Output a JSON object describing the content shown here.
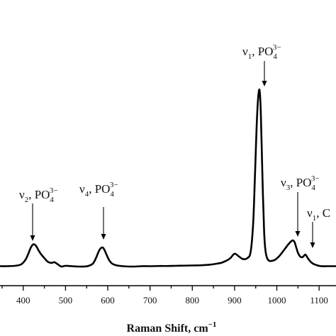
{
  "chart_data": {
    "type": "line",
    "title": "",
    "xlabel": "Raman Shift, cm",
    "xlabel_sup": "−1",
    "ylabel": "",
    "xlim": [
      345,
      1140
    ],
    "ylim": [
      0,
      100
    ],
    "xticks": [
      400,
      500,
      600,
      700,
      800,
      900,
      1000,
      1100
    ],
    "xtick_labels": [
      "400",
      "500",
      "600",
      "700",
      "800",
      "900",
      "1000",
      "1100"
    ],
    "grid": false,
    "legend": "none",
    "series": [
      {
        "color": "#000000",
        "x": [
          345,
          360,
          380,
          395,
          405,
          412,
          418,
          424,
          430,
          436,
          442,
          450,
          458,
          466,
          474,
          482,
          490,
          500,
          515,
          530,
          545,
          555,
          565,
          572,
          578,
          583,
          588,
          592,
          597,
          603,
          610,
          620,
          635,
          650,
          665,
          680,
          700,
          720,
          740,
          760,
          780,
          800,
          820,
          840,
          860,
          870,
          880,
          890,
          900,
          910,
          920,
          930,
          938,
          944,
          948,
          952,
          955,
          958,
          960,
          962,
          964,
          967,
          970,
          973,
          977,
          982,
          988,
          995,
          1003,
          1012,
          1020,
          1028,
          1034,
          1038,
          1042,
          1046,
          1050,
          1055,
          1060,
          1065,
          1068,
          1072,
          1078,
          1085,
          1095,
          1105,
          1120,
          1140
        ],
        "y": [
          1.0,
          1.0,
          1.2,
          2.0,
          4.5,
          8.0,
          11.5,
          13.3,
          12.5,
          10.0,
          7.8,
          5.5,
          3.5,
          2.8,
          3.2,
          2.0,
          0.8,
          1.2,
          1.0,
          0.8,
          0.8,
          1.2,
          2.5,
          5.5,
          9.0,
          11.0,
          11.5,
          10.2,
          7.5,
          4.5,
          2.5,
          1.5,
          1.0,
          0.8,
          0.8,
          1.0,
          1.0,
          1.1,
          1.1,
          1.2,
          1.3,
          1.4,
          1.5,
          1.8,
          2.5,
          3.0,
          4.0,
          5.5,
          8.0,
          6.5,
          5.0,
          5.5,
          9.0,
          25.0,
          50.0,
          78.0,
          93.0,
          100.0,
          98.0,
          88.0,
          70.0,
          42.0,
          20.0,
          10.0,
          5.5,
          4.0,
          4.0,
          4.5,
          6.0,
          8.5,
          11.0,
          13.5,
          15.0,
          15.5,
          14.5,
          11.5,
          8.5,
          6.5,
          6.0,
          7.0,
          7.5,
          6.0,
          4.0,
          2.5,
          1.5,
          1.0,
          1.0,
          1.0
        ]
      }
    ],
    "annotations": [
      {
        "label": "ν",
        "sub": "1",
        "rest": ", PO",
        "chem_sub": "4",
        "chem_sup": "3−",
        "x": 960
      },
      {
        "label": "ν",
        "sub": "2",
        "rest": ", PO",
        "chem_sub": "4",
        "chem_sup": "3−",
        "x": 427
      },
      {
        "label": "ν",
        "sub": "4",
        "rest": ", PO",
        "chem_sub": "4",
        "chem_sup": "3−",
        "x": 586
      },
      {
        "label": "ν",
        "sub": "3",
        "rest": ", PO",
        "chem_sub": "4",
        "chem_sup": "3−",
        "x": 1040
      },
      {
        "label": "ν",
        "sub": "1",
        "rest": ", C",
        "chem_sub": "",
        "chem_sup": "",
        "x": 1072
      }
    ]
  }
}
